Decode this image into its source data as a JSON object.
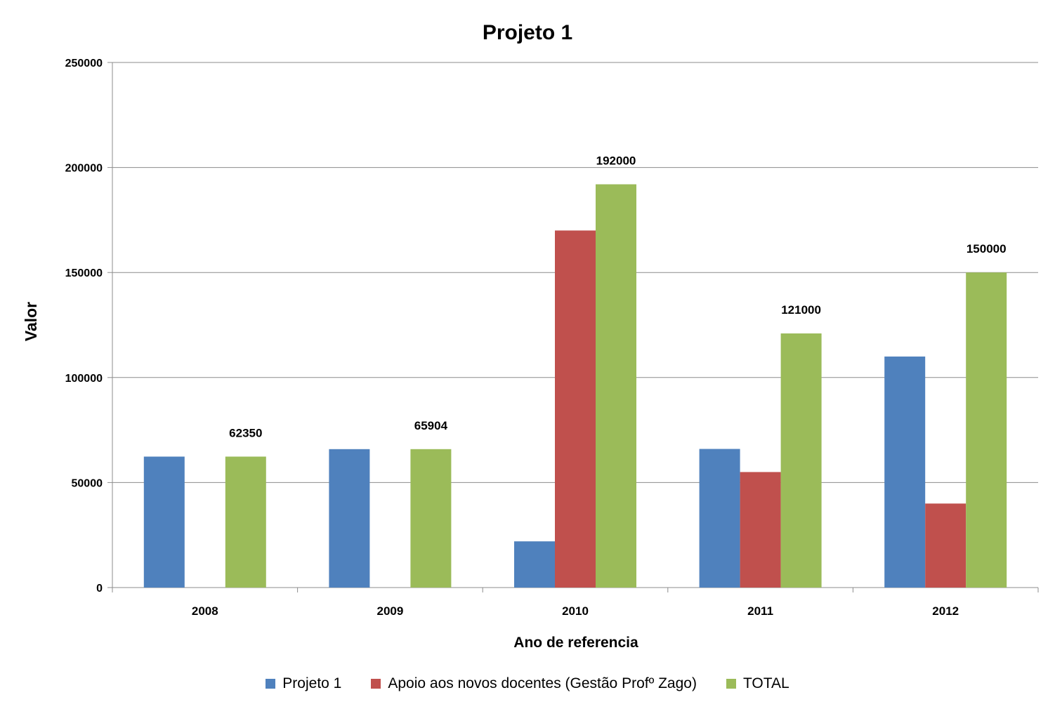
{
  "chart_data": {
    "type": "bar",
    "title": "Projeto 1",
    "xlabel": "Ano de referencia",
    "ylabel": "Valor",
    "categories": [
      "2008",
      "2009",
      "2010",
      "2011",
      "2012"
    ],
    "ylim": [
      0,
      250000
    ],
    "yticks": [
      0,
      50000,
      100000,
      150000,
      200000,
      250000
    ],
    "grid": true,
    "legend_position": "bottom",
    "series": [
      {
        "name": "Projeto 1",
        "color": "#4F81BD",
        "values": [
          62350,
          65904,
          22000,
          66000,
          110000
        ],
        "labels": [
          null,
          null,
          null,
          null,
          null
        ]
      },
      {
        "name": "Apoio aos novos docentes (Gestão Profº Zago)",
        "color": "#C0504D",
        "values": [
          0,
          0,
          170000,
          55000,
          40000
        ],
        "labels": [
          null,
          null,
          null,
          null,
          null
        ]
      },
      {
        "name": "TOTAL",
        "color": "#9BBB59",
        "values": [
          62350,
          65904,
          192000,
          121000,
          150000
        ],
        "labels": [
          "62350",
          "65904",
          "192000",
          "121000",
          "150000"
        ]
      }
    ]
  }
}
